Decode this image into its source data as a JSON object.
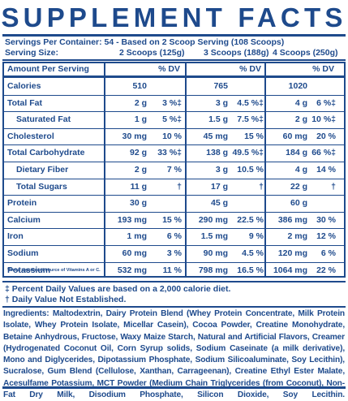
{
  "title": "SUPPLEMENT FACTS",
  "servings_per_container": "Servings Per Container: 54 - Based on 2 Scoop Serving (108 Scoops)",
  "serving_size_label": "Serving Size:",
  "serving_sizes": [
    "2 Scoops (125g)",
    "3 Scoops (188g)",
    "4 Scoops (250g)"
  ],
  "header": {
    "amount_label": "Amount Per Serving",
    "dv_label": "% DV"
  },
  "rows": [
    {
      "name": "Calories",
      "indent": false,
      "v": [
        "510",
        "765",
        "1020"
      ],
      "dv": [
        "",
        "",
        ""
      ]
    },
    {
      "name": "Total Fat",
      "indent": false,
      "v": [
        "2 g",
        "3 g",
        "4 g"
      ],
      "dv": [
        "3 %‡",
        "4.5 %‡",
        "6 %‡"
      ]
    },
    {
      "name": "Saturated Fat",
      "indent": true,
      "v": [
        "1 g",
        "1.5 g",
        "2 g"
      ],
      "dv": [
        "5 %‡",
        "7.5 %‡",
        "10 %‡"
      ]
    },
    {
      "name": "Cholesterol",
      "indent": false,
      "v": [
        "30 mg",
        "45 mg",
        "60 mg"
      ],
      "dv": [
        "10 %",
        "15 %",
        "20 %"
      ]
    },
    {
      "name": "Total Carbohydrate",
      "indent": false,
      "v": [
        "92 g",
        "138 g",
        "184 g"
      ],
      "dv": [
        "33 %‡",
        "49.5 %‡",
        "66 %‡"
      ]
    },
    {
      "name": "Dietary Fiber",
      "indent": true,
      "v": [
        "2 g",
        "3 g",
        "4 g"
      ],
      "dv": [
        "7 %",
        "10.5 %",
        "14 %"
      ]
    },
    {
      "name": "Total Sugars",
      "indent": true,
      "v": [
        "11 g",
        "17 g",
        "22 g"
      ],
      "dv": [
        "†",
        "†",
        "†"
      ]
    },
    {
      "name": "Protein",
      "indent": false,
      "v": [
        "30 g",
        "45 g",
        "60 g"
      ],
      "dv": [
        "",
        "",
        ""
      ]
    },
    {
      "name": "Calcium",
      "indent": false,
      "v": [
        "193 mg",
        "290 mg",
        "386 mg"
      ],
      "dv": [
        "15 %",
        "22.5 %",
        "30 %"
      ]
    },
    {
      "name": "Iron",
      "indent": false,
      "v": [
        "1 mg",
        "1.5 mg",
        "2 mg"
      ],
      "dv": [
        "6 %",
        "9 %",
        "12 %"
      ]
    },
    {
      "name": "Sodium",
      "indent": false,
      "v": [
        "60 mg",
        "90 mg",
        "120 mg"
      ],
      "dv": [
        "3 %",
        "4.5 %",
        "6 %"
      ]
    },
    {
      "name": "Potassium",
      "indent": false,
      "v": [
        "532 mg",
        "798 mg",
        "1064 mg"
      ],
      "dv": [
        "11 %",
        "16.5 %",
        "22 %"
      ]
    }
  ],
  "vitamin_note": "*Not a significant source of Vitamins A or C.",
  "footnotes": [
    "‡ Percent Daily Values are based on a 2,000 calorie diet.",
    "† Daily Value Not Established."
  ],
  "ingredients_label": "Ingredients:",
  "ingredients_text": "Maltodextrin, Dairy Protein Blend (Whey Protein Concentrate, Milk Protein Isolate, Whey Protein Isolate, Micellar Casein), Cocoa Powder, Creatine  Monohydrate, Betaine Anhydrous, Fructose, Waxy Maize Starch, Natural and Artificial Flavors, Creamer (Hydrogenated Coconut Oil, Corn Syrup solids, Sodium Caseinate (a milk derivative), Mono and Diglycerides, Dipotassium Phosphate, Sodium Silicoaluminate, Soy Lecithin), Sucralose, Gum Blend (Cellulose, Xanthan, Carrageenan), Creatine Ethyl Ester Malate, Acesulfame Potassium, MCT Powder (Medium Chain Triglycerides (from Coconut), Non-Fat Dry Milk, Disodium Phosphate, Silicon Dioxide, Soy Lecithin.",
  "colors": {
    "ink": "#1e4a8c",
    "background": "#ffffff"
  }
}
